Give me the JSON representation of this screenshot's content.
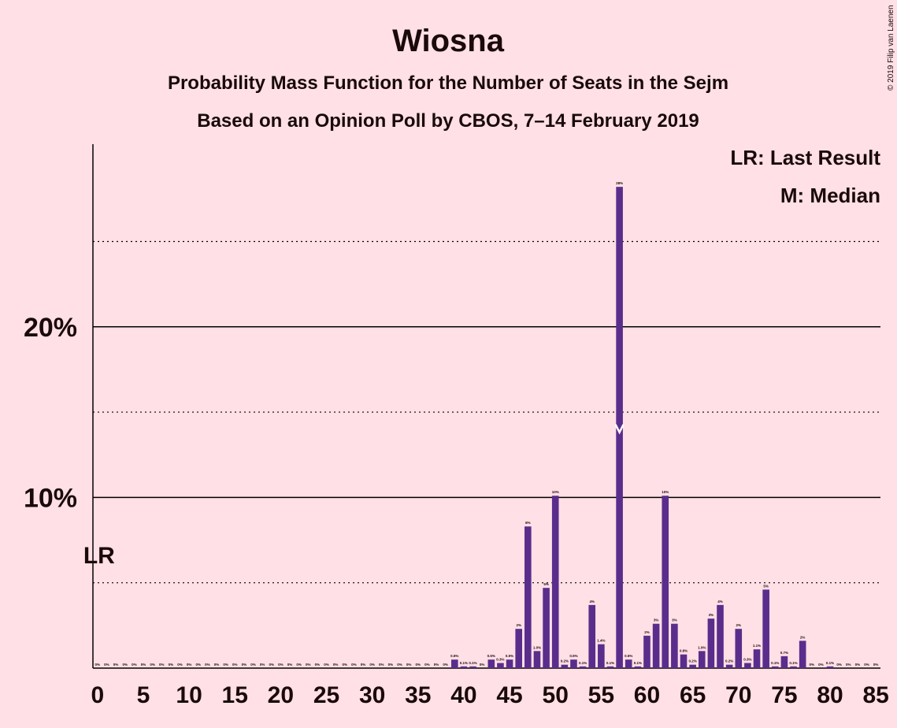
{
  "chart_data": {
    "type": "bar",
    "title": "Wiosna",
    "subtitle": "Probability Mass Function for the Number of Seats in the Sejm",
    "subtitle2": "Based on an Opinion Poll by CBOS, 7–14 February 2019",
    "copyright": "© 2019 Filip van Laenen",
    "color": "#5a2d8c",
    "background": "#ffe0e6",
    "x": [
      0,
      1,
      2,
      3,
      4,
      5,
      6,
      7,
      8,
      9,
      10,
      11,
      12,
      13,
      14,
      15,
      16,
      17,
      18,
      19,
      20,
      21,
      22,
      23,
      24,
      25,
      26,
      27,
      28,
      29,
      30,
      31,
      32,
      33,
      34,
      35,
      36,
      37,
      38,
      39,
      40,
      41,
      42,
      43,
      44,
      45,
      46,
      47,
      48,
      49,
      50,
      51,
      52,
      53,
      54,
      55,
      56,
      57,
      58,
      59,
      60,
      61,
      62,
      63,
      64,
      65,
      66,
      67,
      68,
      69,
      70,
      71,
      72,
      73,
      74,
      75,
      76,
      77,
      78,
      79,
      80,
      81,
      82,
      83,
      84,
      85
    ],
    "values": [
      0,
      0,
      0,
      0,
      0,
      0,
      0,
      0,
      0,
      0,
      0,
      0,
      0,
      0,
      0,
      0,
      0,
      0,
      0,
      0,
      0,
      0,
      0,
      0,
      0,
      0,
      0,
      0,
      0,
      0,
      0,
      0,
      0,
      0,
      0,
      0,
      0,
      0,
      0,
      0.5,
      0.1,
      0.1,
      0,
      0.5,
      0.3,
      0.5,
      2.3,
      8.3,
      1.0,
      4.7,
      10.1,
      0.2,
      0.5,
      0.1,
      3.7,
      1.4,
      0.1,
      28.2,
      0.5,
      0.1,
      1.9,
      2.6,
      10.1,
      2.6,
      0.8,
      0.2,
      1.0,
      2.9,
      3.7,
      0.2,
      2.3,
      0.3,
      1.1,
      4.6,
      0.1,
      0.7,
      0.1,
      1.6,
      0,
      0,
      0.1,
      0,
      0,
      0,
      0,
      0
    ],
    "value_labels": [
      "0%",
      "0%",
      "0%",
      "0%",
      "0%",
      "0%",
      "0%",
      "0%",
      "0%",
      "0%",
      "0%",
      "0%",
      "0%",
      "0%",
      "0%",
      "0%",
      "0%",
      "0%",
      "0%",
      "0%",
      "0%",
      "0%",
      "0%",
      "0%",
      "0%",
      "0%",
      "0%",
      "0%",
      "0%",
      "0%",
      "0%",
      "0%",
      "0%",
      "0%",
      "0%",
      "0%",
      "0%",
      "0%",
      "0%",
      "0.5%",
      "0.1%",
      "0.1%",
      "0%",
      "0.5%",
      "0.3%",
      "0.5%",
      "2%",
      "8%",
      "1.0%",
      "5%",
      "10%",
      "0.2%",
      "0.5%",
      "0.1%",
      "4%",
      "1.4%",
      "0.1%",
      "28%",
      "0.5%",
      "0.1%",
      "2%",
      "3%",
      "10%",
      "3%",
      "0.8%",
      "0.2%",
      "1.0%",
      "3%",
      "4%",
      "0.2%",
      "2%",
      "0.3%",
      "1.1%",
      "5%",
      "0.1%",
      "0.7%",
      "0.1%",
      "2%",
      "0%",
      "0%",
      "0.1%",
      "0%",
      "0%",
      "0%",
      "0%",
      "0%"
    ],
    "xlim": [
      -0.5,
      85.5
    ],
    "xticks": [
      0,
      5,
      10,
      15,
      20,
      25,
      30,
      35,
      40,
      45,
      50,
      55,
      60,
      65,
      70,
      75,
      80,
      85
    ],
    "ylim": [
      0,
      30.7
    ],
    "yticks": [
      {
        "value": 10,
        "label": "10%"
      },
      {
        "value": 20,
        "label": "20%"
      }
    ],
    "minor_grid": [
      5,
      15,
      25
    ],
    "last_result": 0,
    "last_result_label": "LR",
    "median": 57,
    "legend": [
      "LR: Last Result",
      "M: Median"
    ]
  }
}
